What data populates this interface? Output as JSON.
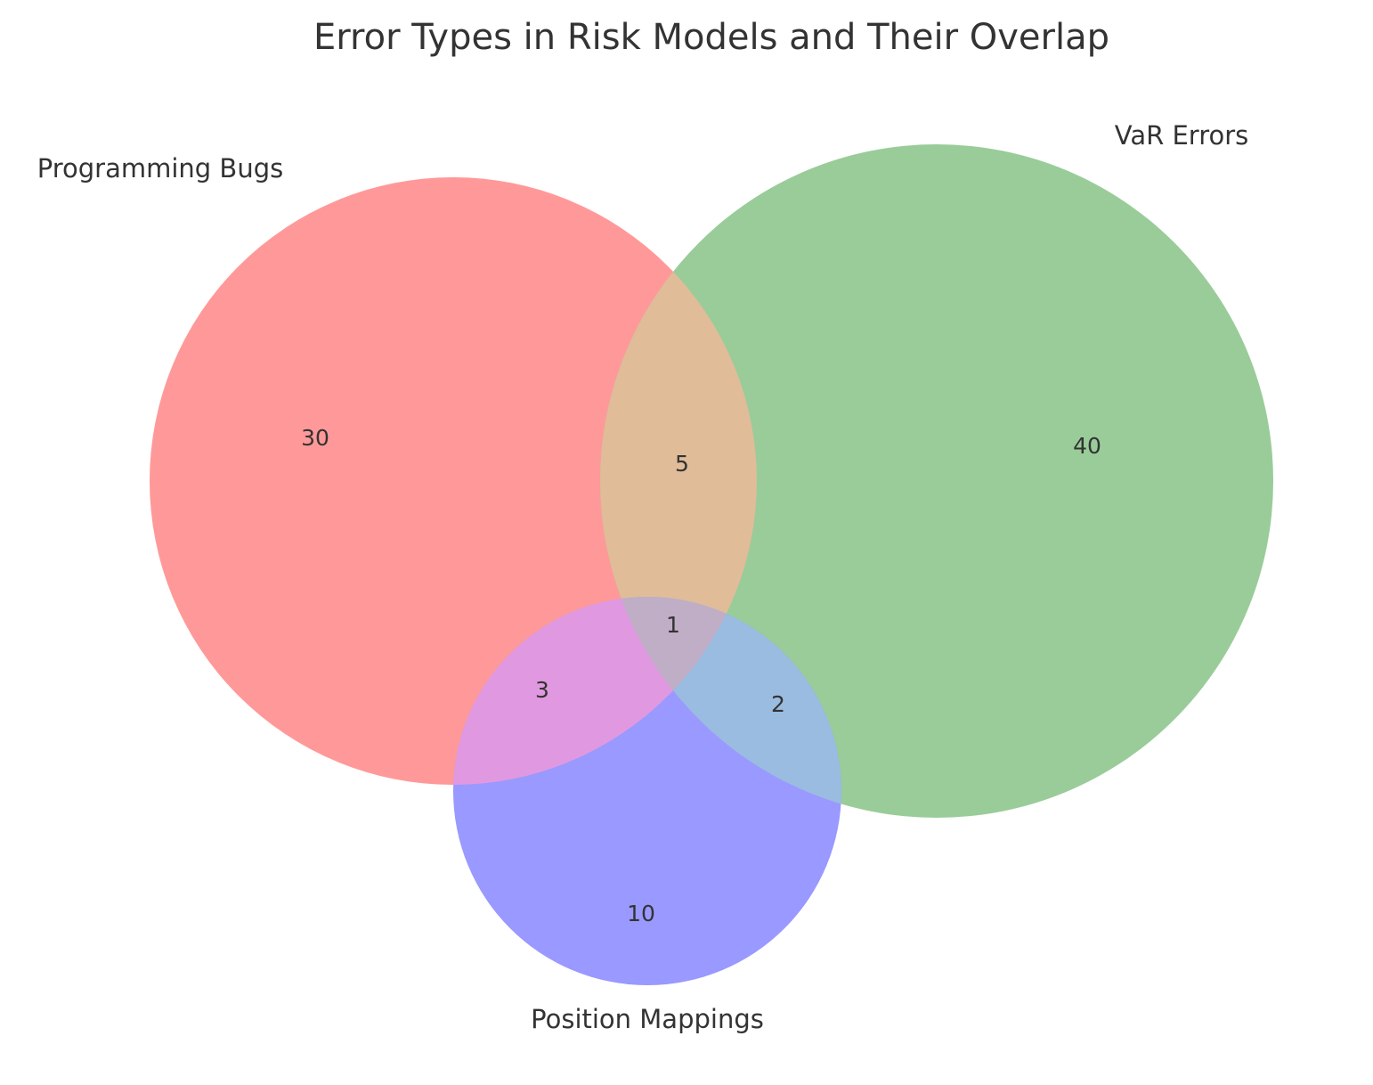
{
  "title": "Error Types in Risk Models and Their Overlap",
  "sets": [
    {
      "id": "programming",
      "label": "Programming Bugs",
      "color": "#ff9999"
    },
    {
      "id": "var",
      "label": "VaR Errors",
      "color": "#99cc99"
    },
    {
      "id": "position",
      "label": "Position Mappings",
      "color": "#9999ff"
    }
  ],
  "regions": {
    "programming_only": "30",
    "var_only": "40",
    "position_only": "10",
    "programming_var": "5",
    "programming_position": "3",
    "var_position": "2",
    "all_three": "1"
  },
  "region_colors": {
    "programming_var": "#e0bc99",
    "programming_position": "#e099e0",
    "var_position": "#99bce0",
    "all_three": "#bfaec5"
  }
}
